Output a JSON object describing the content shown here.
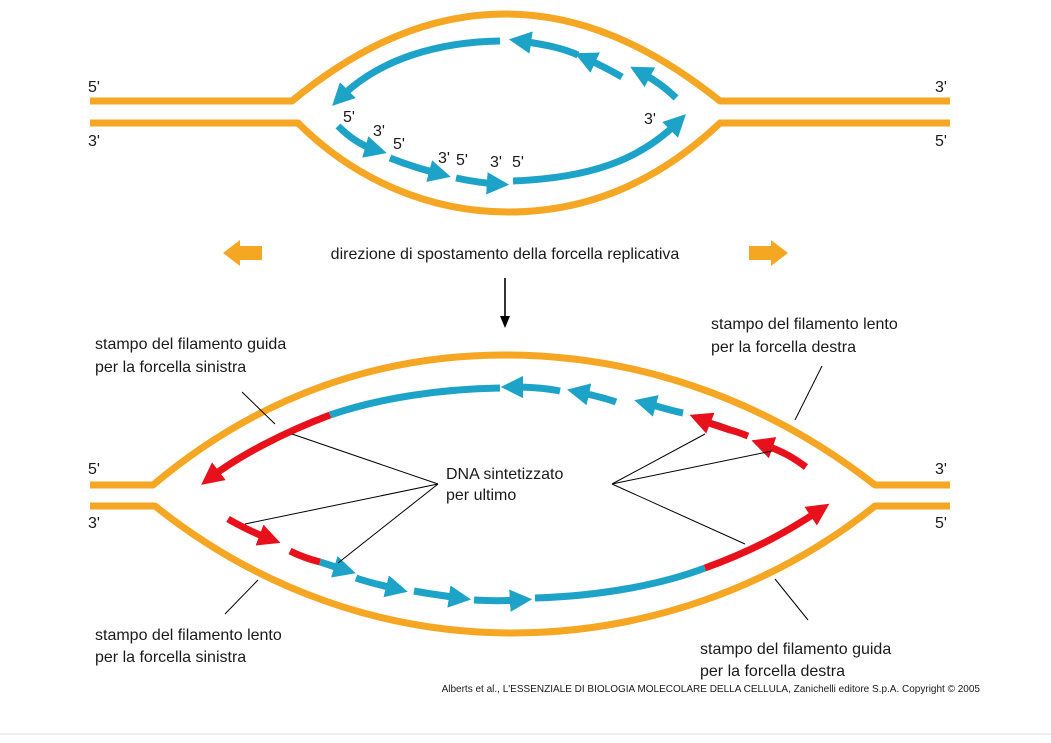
{
  "colors": {
    "template_strand": "#f5a623",
    "new_strand": "#1da3c7",
    "last_synth": "#e8101a",
    "leader_line": "#000000"
  },
  "top_panel": {
    "left_upper_end": "5'",
    "left_lower_end": "3'",
    "right_upper_end": "3'",
    "right_lower_end": "5'",
    "fragment_labels": {
      "a": "5'",
      "b": "3'",
      "c": "5'",
      "d": "3'",
      "e": "5'",
      "f": "3'",
      "g": "5'",
      "h": "3'"
    }
  },
  "direction": {
    "text": "direzione di spostamento della forcella replicativa",
    "arrows_icon": "double-orange-arrow-icon"
  },
  "bottom_panel": {
    "left_upper_end": "5'",
    "left_lower_end": "3'",
    "right_upper_end": "3'",
    "right_lower_end": "5'",
    "label_lead_left": [
      "stampo del filamento guida",
      "per la forcella sinistra"
    ],
    "label_lag_right": [
      "stampo del filamento lento",
      "per la forcella destra"
    ],
    "label_lag_left": [
      "stampo del filamento lento",
      "per la forcella sinistra"
    ],
    "label_lead_right": [
      "stampo del filamento guida",
      "per la forcella destra"
    ],
    "label_center": [
      "DNA sintetizzato",
      "per ultimo"
    ]
  },
  "credit": {
    "text": "Alberts et al., L'ESSENZIALE DI BIOLOGIA MOLECOLARE DELLA CELLULA,  Zanichelli editore S.p.A.  Copyright © 2005"
  }
}
